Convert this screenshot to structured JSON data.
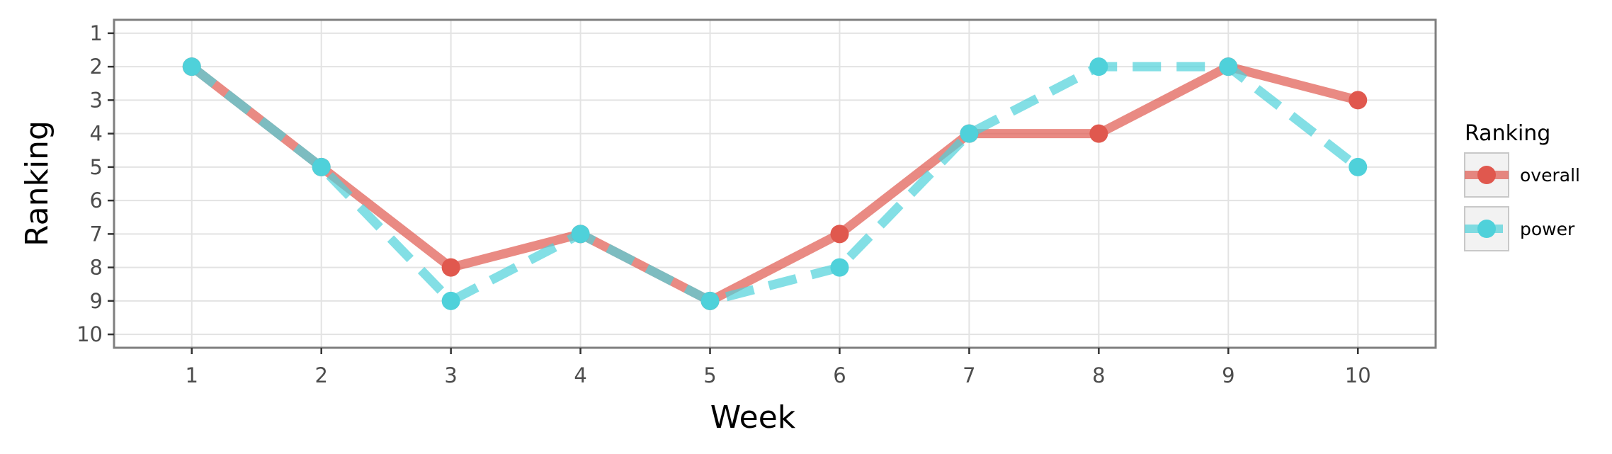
{
  "chart_data": {
    "type": "line",
    "title": "",
    "xlabel": "Week",
    "ylabel": "Ranking",
    "x": [
      1,
      2,
      3,
      4,
      5,
      6,
      7,
      8,
      9,
      10
    ],
    "x_ticks": [
      "1",
      "2",
      "3",
      "4",
      "5",
      "6",
      "7",
      "8",
      "9",
      "10"
    ],
    "y_ticks": [
      "1",
      "2",
      "3",
      "4",
      "5",
      "6",
      "7",
      "8",
      "9",
      "10"
    ],
    "xlim": [
      0.4,
      10.6
    ],
    "ylim": [
      0.6,
      10.4
    ],
    "y_reversed": true,
    "grid": true,
    "legend": {
      "title": "Ranking",
      "placement": "right"
    },
    "series": [
      {
        "name": "overall",
        "values": [
          2,
          5,
          8,
          7,
          9,
          7,
          4,
          4,
          2,
          3
        ],
        "color": "#E0584E",
        "line_style": "solid"
      },
      {
        "name": "power",
        "values": [
          2,
          5,
          9,
          7,
          9,
          8,
          4,
          2,
          2,
          5
        ],
        "color": "#4FD1DA",
        "line_style": "dashed"
      }
    ]
  }
}
